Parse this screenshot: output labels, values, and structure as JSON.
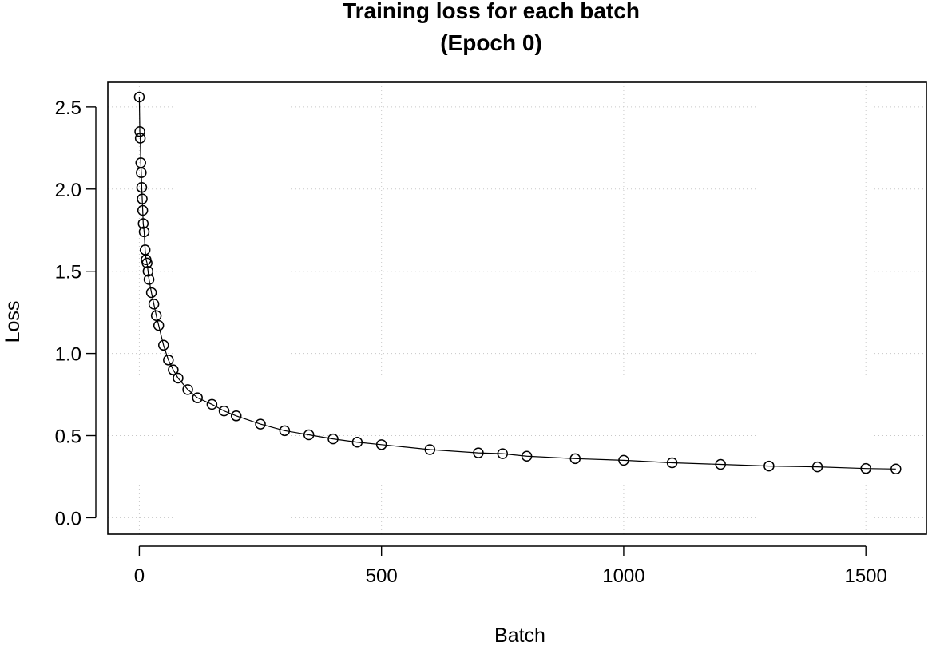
{
  "chart_data": {
    "type": "line",
    "markers": "open-circle",
    "title": "Training loss for each batch",
    "subtitle": "(Epoch 0)",
    "xlabel": "Batch",
    "ylabel": "Loss",
    "xlim": [
      -65,
      1625
    ],
    "ylim": [
      -0.1,
      2.65
    ],
    "xticks": [
      0,
      500,
      1000,
      1500
    ],
    "xtick_labels": [
      "0",
      "500",
      "1000",
      "1500"
    ],
    "yticks": [
      0.0,
      0.5,
      1.0,
      1.5,
      2.0,
      2.5
    ],
    "ytick_labels": [
      "0.0",
      "0.5",
      "1.0",
      "1.5",
      "2.0",
      "2.5"
    ],
    "grid": true,
    "grid_style": "dotted",
    "series": [
      {
        "color": "#000000",
        "x": [
          0,
          1,
          2,
          3,
          4,
          5,
          6,
          7,
          8,
          10,
          12,
          14,
          16,
          18,
          20,
          25,
          30,
          35,
          40,
          50,
          60,
          70,
          80,
          100,
          120,
          150,
          175,
          200,
          250,
          300,
          350,
          400,
          450,
          500,
          600,
          700,
          750,
          800,
          900,
          1000,
          1100,
          1200,
          1300,
          1400,
          1500,
          1562
        ],
        "y": [
          2.56,
          2.35,
          2.31,
          2.16,
          2.1,
          2.01,
          1.94,
          1.87,
          1.79,
          1.74,
          1.63,
          1.57,
          1.55,
          1.5,
          1.45,
          1.37,
          1.3,
          1.23,
          1.17,
          1.05,
          0.96,
          0.9,
          0.85,
          0.78,
          0.73,
          0.69,
          0.65,
          0.62,
          0.57,
          0.53,
          0.505,
          0.48,
          0.46,
          0.445,
          0.415,
          0.395,
          0.39,
          0.375,
          0.36,
          0.35,
          0.335,
          0.325,
          0.315,
          0.31,
          0.3,
          0.297
        ]
      }
    ]
  }
}
